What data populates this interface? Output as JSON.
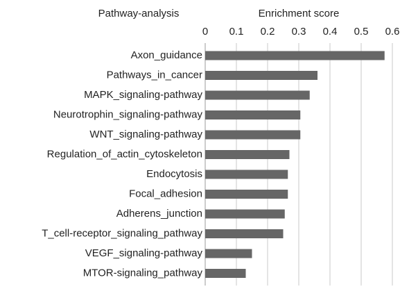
{
  "chart_data": {
    "type": "bar",
    "orientation": "horizontal",
    "category_axis_label": "Pathway-analysis",
    "value_axis_label": "Enrichment score",
    "categories": [
      "Axon_guidance",
      "Pathways_in_cancer",
      "MAPK_signaling-pathway",
      "Neurotrophin_signaling-pathway",
      "WNT_signaling-pathway",
      "Regulation_of_actin_cytoskeleton",
      "Endocytosis",
      "Focal_adhesion",
      "Adherens_junction",
      "T_cell-receptor_signaling_pathway",
      "VEGF_signaling-pathway",
      "MTOR-signaling_pathway"
    ],
    "values": [
      0.575,
      0.36,
      0.335,
      0.305,
      0.305,
      0.27,
      0.265,
      0.265,
      0.255,
      0.25,
      0.15,
      0.13
    ],
    "color": "#666666",
    "xlim": [
      0,
      0.6
    ],
    "xticks": [
      0,
      0.1,
      0.2,
      0.3,
      0.4,
      0.5,
      0.6
    ],
    "grid": true
  }
}
